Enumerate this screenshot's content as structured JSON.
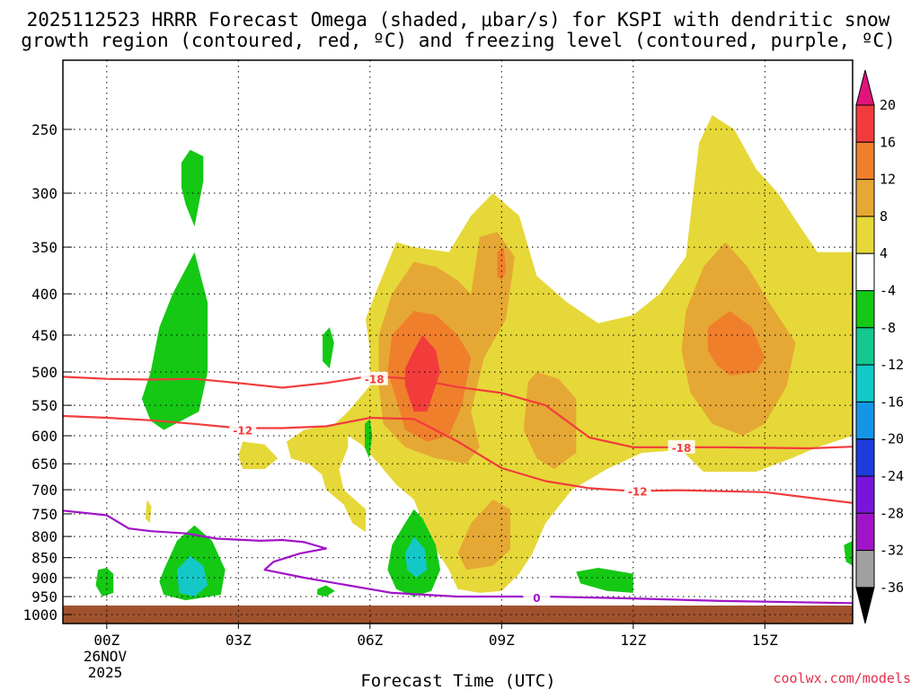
{
  "chart_data": {
    "type": "heatmap",
    "title_line1": "2025112523 HRRR Forecast Omega (shaded, μbar/s) for KSPI with dendritic snow",
    "title_line2": "growth region (contoured, red, ºC) and freezing level (contoured, purple, ºC)",
    "xlabel": "Forecast Time (UTC)",
    "credit": "coolwx.com/models",
    "x_ticks": [
      {
        "hour": 0,
        "label": "00Z"
      },
      {
        "hour": 3,
        "label": "03Z"
      },
      {
        "hour": 6,
        "label": "06Z"
      },
      {
        "hour": 9,
        "label": "09Z"
      },
      {
        "hour": 12,
        "label": "12Z"
      },
      {
        "hour": 15,
        "label": "15Z"
      }
    ],
    "date_label_line1": "26NOV",
    "date_label_line2": "2025",
    "xlim": [
      -1,
      17
    ],
    "y_ticks": [
      250,
      300,
      350,
      400,
      450,
      500,
      550,
      600,
      650,
      700,
      750,
      800,
      850,
      900,
      950,
      1000
    ],
    "y_axis": "pressure (hPa), log scale",
    "colorbar": {
      "labels": [
        "20",
        "16",
        "12",
        "8",
        "4",
        "-4",
        "-8",
        "-12",
        "-16",
        "-20",
        "-24",
        "-28",
        "-32",
        "-36"
      ],
      "colors": [
        "#e0147c",
        "#f23c3c",
        "#f07f2c",
        "#e6a834",
        "#e6d838",
        "#ffffff",
        "#14c814",
        "#14c890",
        "#14c8c8",
        "#1496e6",
        "#1e3cdc",
        "#7814dc",
        "#a014c8",
        "#a0a0a0",
        "#000000"
      ]
    },
    "shading_colors": {
      "green": "#14c814",
      "teal": "#14c8c8",
      "yellow": "#e6d838",
      "orange_light": "#e6a834",
      "orange": "#f07f2c",
      "red": "#f23c3c",
      "ground": "#a0522d"
    },
    "contours": [
      {
        "name": "dgz_minus18",
        "level": "-18",
        "color": "#f23c3c",
        "points": [
          [
            -1,
            507
          ],
          [
            0,
            510
          ],
          [
            1,
            511
          ],
          [
            2,
            510
          ],
          [
            3,
            516
          ],
          [
            4,
            523
          ],
          [
            5,
            516
          ],
          [
            6,
            506
          ],
          [
            7,
            510
          ],
          [
            8,
            522
          ],
          [
            9,
            531
          ],
          [
            10,
            550
          ],
          [
            11,
            603
          ],
          [
            12,
            620
          ],
          [
            13,
            620
          ],
          [
            14,
            620
          ],
          [
            15,
            621
          ],
          [
            16,
            622
          ],
          [
            17,
            619
          ]
        ],
        "labels": [
          {
            "hour": 6.1,
            "p": 510
          },
          {
            "hour": 13.1,
            "p": 620
          }
        ]
      },
      {
        "name": "dgz_minus12",
        "level": "-12",
        "color": "#f23c3c",
        "points": [
          [
            -1,
            567
          ],
          [
            0,
            570
          ],
          [
            1,
            574
          ],
          [
            2,
            580
          ],
          [
            3,
            587
          ],
          [
            4,
            587
          ],
          [
            5,
            584
          ],
          [
            6,
            570
          ],
          [
            7,
            572
          ],
          [
            8,
            610
          ],
          [
            9,
            658
          ],
          [
            10,
            683
          ],
          [
            11,
            697
          ],
          [
            12,
            703
          ],
          [
            13,
            701
          ],
          [
            14,
            703
          ],
          [
            15,
            705
          ],
          [
            16,
            716
          ],
          [
            17,
            727
          ]
        ],
        "labels": [
          {
            "hour": 3.1,
            "p": 590
          },
          {
            "hour": 12.1,
            "p": 703
          }
        ]
      },
      {
        "name": "freezing_level",
        "level": "0",
        "color": "#a014c8",
        "points": [
          [
            -1,
            743
          ],
          [
            0,
            753
          ],
          [
            0.5,
            782
          ],
          [
            1,
            788
          ],
          [
            1.8,
            793
          ],
          [
            2.5,
            805
          ],
          [
            3.5,
            810
          ],
          [
            4,
            808
          ],
          [
            4.5,
            813
          ],
          [
            5,
            828
          ],
          [
            4.4,
            840
          ],
          [
            3.8,
            860
          ],
          [
            3.6,
            880
          ],
          [
            4.5,
            900
          ],
          [
            5.5,
            920
          ],
          [
            6.5,
            940
          ],
          [
            8,
            950
          ],
          [
            10,
            950
          ],
          [
            12,
            955
          ],
          [
            14,
            962
          ],
          [
            17,
            968
          ]
        ],
        "labels": [
          {
            "hour": 9.8,
            "p": 952
          }
        ]
      }
    ]
  }
}
